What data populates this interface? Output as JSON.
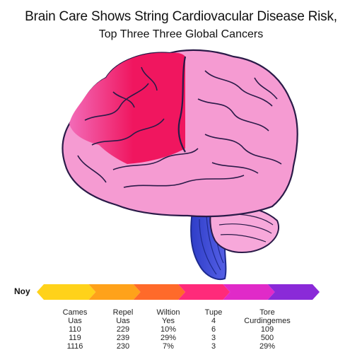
{
  "title": {
    "line1": "Brain Care Shows String Cardiovacular Disease Risk,",
    "line2": "Top Three Three Global Cancers"
  },
  "legend": {
    "label": "Noy",
    "colors": [
      "#ffd21a",
      "#ffa21a",
      "#ff6a2a",
      "#ff2a7a",
      "#e02ac8",
      "#8a2ad8"
    ]
  },
  "image": {
    "subject": "brain-illustration",
    "colors": {
      "frontal_highlight": "#f0165f",
      "cortex_pink": "#f59bd2",
      "cortex_outline": "#2a1a48",
      "cerebellum_pink": "#f7a8da",
      "brainstem_blue": "#3d4ad8"
    }
  },
  "columns": [
    {
      "header": "Cames",
      "cells": [
        "Uas",
        "110",
        "119",
        "1116"
      ]
    },
    {
      "header": "Repel",
      "cells": [
        "Uas",
        "229",
        "239",
        "230"
      ]
    },
    {
      "header": "Wiltion",
      "cells": [
        "Yes",
        "10%",
        "29%",
        "7%"
      ]
    },
    {
      "header": "Tupe",
      "cells": [
        "4",
        "6",
        "3",
        "3"
      ]
    },
    {
      "header": "Tore",
      "cells": [
        "Curdingemes",
        "109",
        "500",
        "29%"
      ]
    }
  ]
}
